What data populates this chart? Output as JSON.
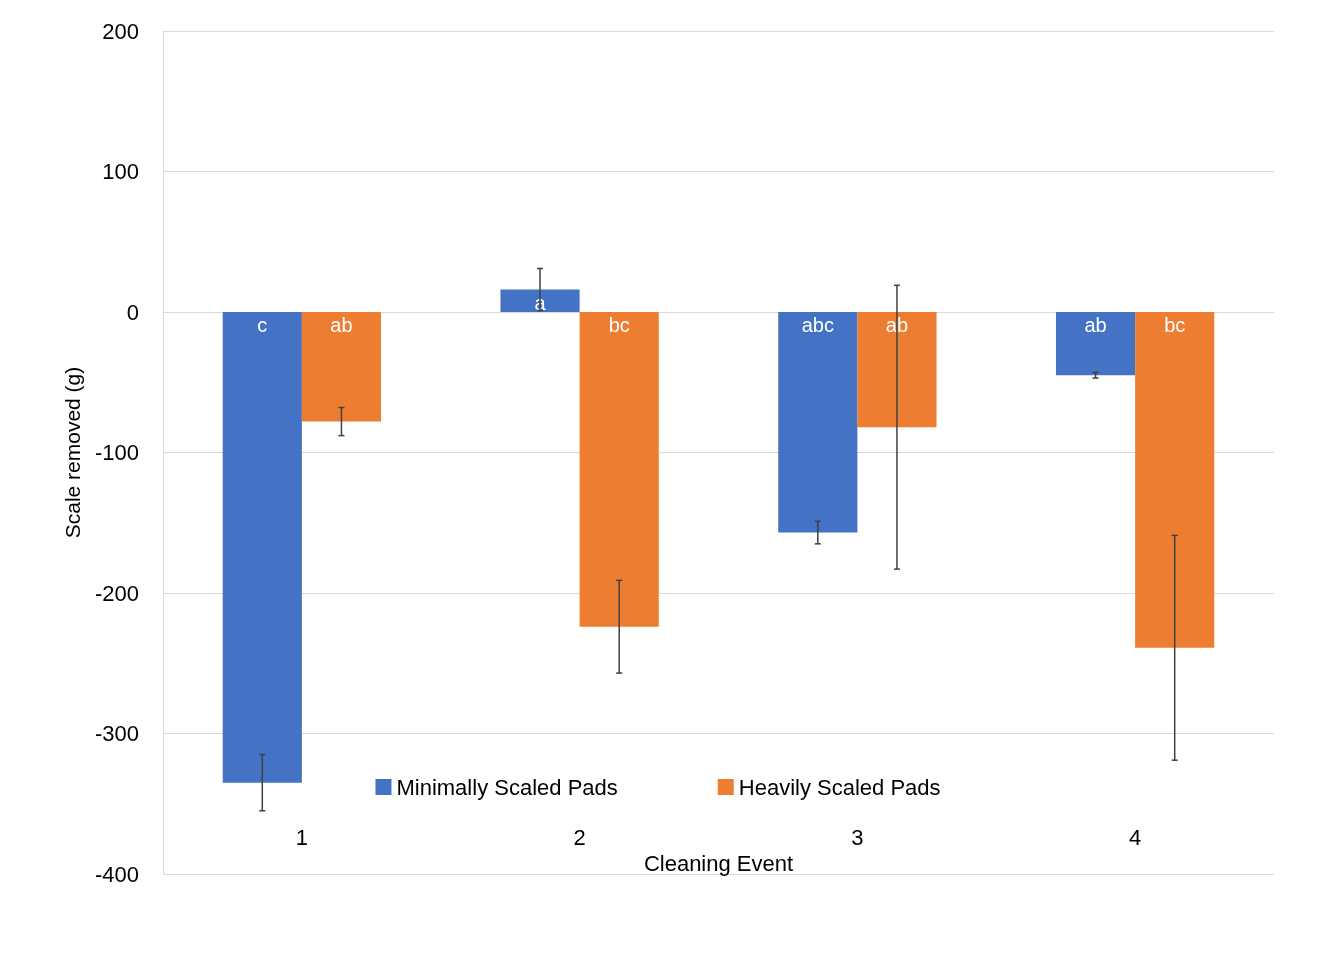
{
  "chart_data": {
    "type": "bar",
    "xlabel": "Cleaning Event",
    "ylabel": "Scale removed (g)",
    "categories": [
      "1",
      "2",
      "3",
      "4"
    ],
    "series": [
      {
        "name": "Minimally Scaled Pads",
        "color": "#4472c4",
        "values": [
          -335,
          16,
          -157,
          -45
        ],
        "errors": [
          20,
          15,
          8,
          2
        ],
        "value_labels": [
          "c",
          "a",
          "abc",
          "ab"
        ]
      },
      {
        "name": "Heavily Scaled Pads",
        "color": "#ed7d31",
        "values": [
          -78,
          -224,
          -82,
          -239
        ],
        "errors": [
          10,
          33,
          101,
          80
        ],
        "value_labels": [
          "ab",
          "bc",
          "ab",
          "bc"
        ]
      }
    ],
    "ylim": [
      -400,
      200
    ],
    "yticks": [
      -400,
      -300,
      -200,
      -100,
      0,
      100,
      200
    ],
    "grid": "y",
    "legend": "bottom"
  }
}
